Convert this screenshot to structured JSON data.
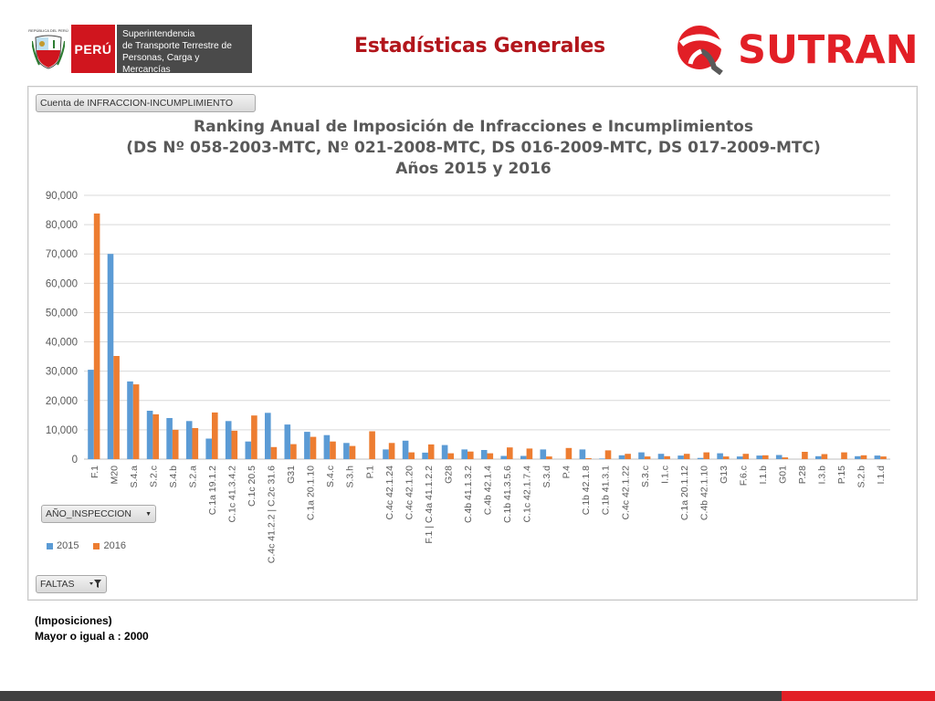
{
  "header": {
    "peru_caption": "REPÚBLICA DEL PERÚ",
    "peru_label": "PERÚ",
    "agency_line1": "Superintendencia",
    "agency_line2": "de Transporte Terrestre de",
    "agency_line3": "Personas, Carga y Mercancías",
    "page_title": "Estadísticas Generales",
    "brand": "SUTRAN"
  },
  "pivot": {
    "value_field": "Cuenta de INFRACCION-INCUMPLIMIENTO",
    "series_field": "AÑO_INSPECCION",
    "filter_field": "FALTAS"
  },
  "notes": {
    "line1": "(Imposiciones)",
    "line2": "Mayor o igual a : 2000"
  },
  "colors": {
    "series_2015": "#5b9bd5",
    "series_2016": "#ed7d31",
    "title_red": "#b2161c",
    "brand_red": "#e21f26"
  },
  "chart_data": {
    "type": "bar",
    "title_lines": [
      "Ranking Anual de Imposición de Infracciones e Incumplimientos",
      "(DS Nº 058-2003-MTC, Nº 021-2008-MTC, DS 016-2009-MTC, DS 017-2009-MTC)",
      "Años 2015 y 2016"
    ],
    "xlabel": "",
    "ylabel": "",
    "ylim": [
      0,
      90000
    ],
    "yticks": [
      "0",
      "10,000",
      "20,000",
      "30,000",
      "40,000",
      "50,000",
      "60,000",
      "70,000",
      "80,000",
      "90,000"
    ],
    "grid": true,
    "legend": "bottom-left",
    "categories": [
      "F.1",
      "M20",
      "S.4.a",
      "S.2.c",
      "S.4.b",
      "S.2.a",
      "C.1a 19.1.2",
      "C.1c 41.3.4.2",
      "C.1c 20.5",
      "C.4c 41.2.2 | C.2c 31.6",
      "G31",
      "C.1a 20.1.10",
      "S.4.c",
      "S.3.h",
      "P.1",
      "C.4c 42.1.24",
      "C.4c 42.1.20",
      "F.1 | C.4a 41.1.2.2",
      "G28",
      "C.4b 41.1.3.2",
      "C.4b 42.1.4",
      "C.1b 41.3.5.6",
      "C.1c 42.1.7.4",
      "S.3.d",
      "P.4",
      "C.1b 42.1.8",
      "C.1b 41.3.1",
      "C.4c 42.1.22",
      "S.3.c",
      "I.1.c",
      "C.1a 20.1.12",
      "C.4b 42.1.10",
      "G13",
      "F.6.c",
      "I.1.b",
      "G01",
      "P.28",
      "I.3.b",
      "P.15",
      "S.2.b",
      "I.1.d"
    ],
    "series": [
      {
        "name": "2015",
        "values": [
          30500,
          70000,
          26500,
          16500,
          14000,
          13000,
          7000,
          13000,
          6000,
          15800,
          11800,
          9300,
          8200,
          5500,
          0,
          3300,
          6300,
          2200,
          4800,
          3300,
          3100,
          1100,
          1100,
          3300,
          0,
          3300,
          200,
          1300,
          2300,
          1800,
          1200,
          400,
          2000,
          900,
          1200,
          1400,
          0,
          1000,
          0,
          1000,
          1200
        ]
      },
      {
        "name": "2016",
        "values": [
          83800,
          35200,
          25500,
          15300,
          10000,
          10600,
          15900,
          9700,
          14900,
          4100,
          5100,
          7600,
          6000,
          4500,
          9500,
          5500,
          2300,
          5000,
          2000,
          2600,
          2000,
          4000,
          3600,
          900,
          3800,
          300,
          3000,
          1800,
          900,
          1000,
          1800,
          2300,
          900,
          1800,
          1300,
          600,
          2500,
          1700,
          2300,
          1300,
          900
        ]
      }
    ]
  }
}
